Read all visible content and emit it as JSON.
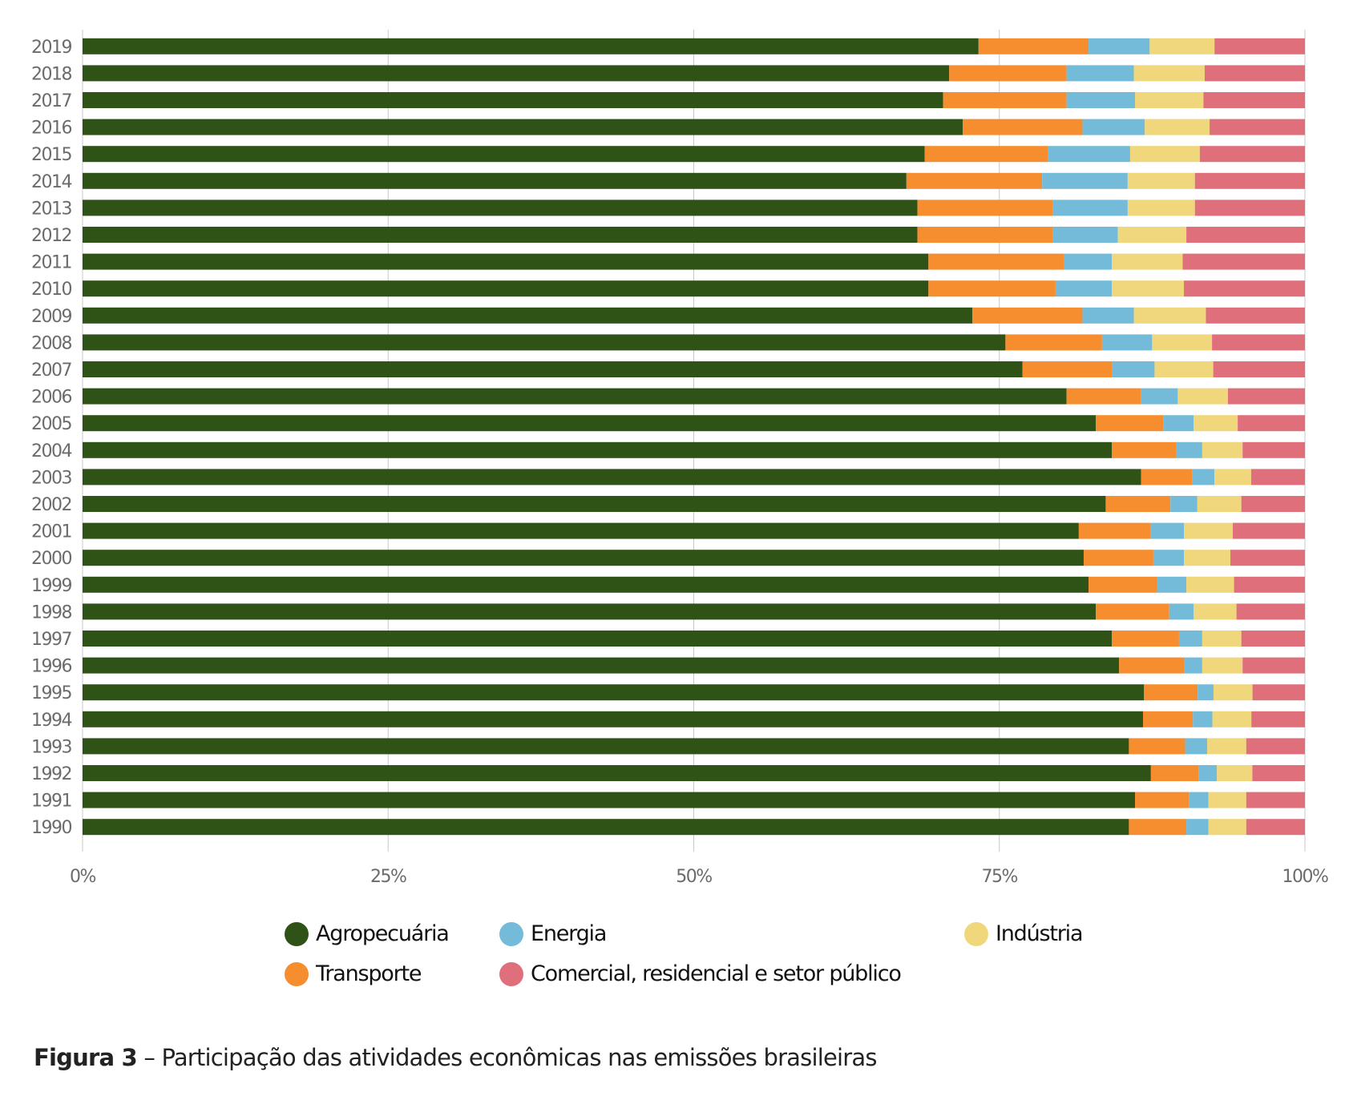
{
  "chart_data": {
    "type": "bar",
    "orientation": "horizontal",
    "stacked": "100%",
    "title": "",
    "xlabel": "",
    "ylabel": "",
    "xlim": [
      0,
      100
    ],
    "x_ticks": [
      "0%",
      "25%",
      "50%",
      "75%",
      "100%"
    ],
    "grid": true,
    "legend_position": "bottom",
    "categories": [
      "2019",
      "2018",
      "2017",
      "2016",
      "2015",
      "2014",
      "2013",
      "2012",
      "2011",
      "2010",
      "2009",
      "2008",
      "2007",
      "2006",
      "2005",
      "2004",
      "2003",
      "2002",
      "2001",
      "2000",
      "1999",
      "1998",
      "1997",
      "1996",
      "1995",
      "1994",
      "1993",
      "1992",
      "1991",
      "1990"
    ],
    "series": [
      {
        "name": "Agropecuária",
        "color": "#2f5216",
        "values": [
          73.3,
          70.9,
          70.4,
          72.0,
          68.9,
          67.4,
          68.3,
          68.3,
          69.2,
          69.2,
          72.8,
          75.5,
          76.9,
          80.5,
          82.9,
          84.2,
          86.6,
          83.7,
          81.5,
          81.9,
          82.3,
          82.9,
          84.2,
          84.8,
          87.1,
          87.1,
          85.6,
          87.4,
          86.1,
          85.6
        ]
      },
      {
        "name": "Transporte",
        "color": "#f68d2e",
        "values": [
          9.0,
          9.6,
          10.1,
          9.8,
          10.1,
          11.1,
          11.1,
          11.1,
          11.1,
          10.4,
          9.0,
          7.9,
          7.3,
          6.1,
          5.5,
          5.3,
          4.2,
          5.3,
          5.9,
          5.7,
          5.6,
          6.0,
          5.5,
          5.3,
          4.4,
          4.1,
          4.6,
          3.9,
          4.4,
          4.7
        ]
      },
      {
        "name": "Energia",
        "color": "#74bbda",
        "values": [
          5.0,
          5.5,
          5.6,
          5.1,
          6.7,
          7.0,
          6.1,
          5.3,
          3.9,
          4.6,
          4.2,
          4.1,
          3.5,
          3.0,
          2.5,
          2.1,
          1.8,
          2.2,
          2.7,
          2.5,
          2.4,
          2.0,
          1.9,
          1.5,
          1.3,
          1.6,
          1.8,
          1.5,
          1.6,
          1.8
        ]
      },
      {
        "name": "Indústria",
        "color": "#f0d77c",
        "values": [
          5.3,
          5.8,
          5.6,
          5.3,
          5.7,
          5.5,
          5.5,
          5.6,
          5.8,
          5.9,
          5.9,
          4.9,
          4.8,
          4.1,
          3.6,
          3.3,
          3.0,
          3.6,
          4.0,
          3.8,
          3.9,
          3.5,
          3.2,
          3.3,
          3.2,
          3.2,
          3.2,
          2.9,
          3.1,
          3.1
        ]
      },
      {
        "name": "Comercial, residencial e setor público",
        "color": "#e06f7c",
        "values": [
          7.4,
          8.2,
          8.3,
          7.8,
          8.6,
          9.0,
          9.0,
          9.7,
          10.0,
          9.9,
          8.1,
          7.6,
          7.5,
          6.3,
          5.5,
          5.1,
          4.4,
          5.2,
          5.9,
          6.1,
          5.8,
          5.6,
          5.2,
          5.1,
          4.3,
          4.4,
          4.8,
          4.3,
          4.8,
          4.8
        ]
      }
    ]
  },
  "legend": {
    "items": [
      {
        "label": "Agropecuária",
        "color": "#2f5216"
      },
      {
        "label": "Energia",
        "color": "#74bbda"
      },
      {
        "label": "Indústria",
        "color": "#f0d77c"
      },
      {
        "label": "Transporte",
        "color": "#f68d2e"
      },
      {
        "label": "Comercial, residencial e setor público",
        "color": "#e06f7c"
      }
    ]
  },
  "caption": {
    "label": "Figura 3",
    "separator": " – ",
    "text": "Participação das atividades econômicas nas emissões brasileiras"
  }
}
